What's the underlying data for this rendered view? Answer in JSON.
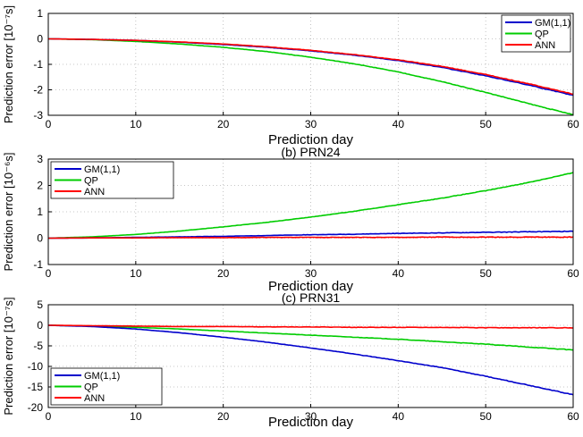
{
  "chart_data": [
    {
      "type": "line",
      "title": "",
      "xlabel": "Prediction day",
      "ylabel": "Prediction error [10⁻⁷s]",
      "xlim": [
        0,
        60
      ],
      "ylim": [
        -3,
        1
      ],
      "xticks": [
        0,
        10,
        20,
        30,
        40,
        50,
        60
      ],
      "yticks": [
        -3,
        -2,
        -1,
        0,
        1
      ],
      "legend_position": "top-right",
      "series": [
        {
          "name": "GM(1,1)",
          "color": "#0000cc",
          "x": [
            0,
            5,
            10,
            15,
            20,
            25,
            30,
            35,
            40,
            45,
            50,
            55,
            60
          ],
          "y": [
            0,
            -0.02,
            -0.06,
            -0.13,
            -0.22,
            -0.33,
            -0.47,
            -0.64,
            -0.85,
            -1.12,
            -1.45,
            -1.82,
            -2.22
          ]
        },
        {
          "name": "QP",
          "color": "#00cc00",
          "x": [
            0,
            5,
            10,
            15,
            20,
            25,
            30,
            35,
            40,
            45,
            50,
            55,
            60
          ],
          "y": [
            0,
            -0.03,
            -0.1,
            -0.2,
            -0.33,
            -0.5,
            -0.72,
            -0.98,
            -1.3,
            -1.68,
            -2.1,
            -2.55,
            -2.98
          ]
        },
        {
          "name": "ANN",
          "color": "#ff0000",
          "x": [
            0,
            5,
            10,
            15,
            20,
            25,
            30,
            35,
            40,
            45,
            50,
            55,
            60
          ],
          "y": [
            0,
            -0.02,
            -0.06,
            -0.12,
            -0.2,
            -0.31,
            -0.45,
            -0.62,
            -0.82,
            -1.08,
            -1.4,
            -1.77,
            -2.17
          ]
        }
      ]
    },
    {
      "type": "line",
      "title": "(b) PRN24",
      "xlabel": "Prediction day",
      "ylabel": "Prediction error [10⁻⁶s]",
      "xlim": [
        0,
        60
      ],
      "ylim": [
        -1,
        3
      ],
      "xticks": [
        0,
        10,
        20,
        30,
        40,
        50,
        60
      ],
      "yticks": [
        -1,
        0,
        1,
        2,
        3
      ],
      "legend_position": "top-left",
      "series": [
        {
          "name": "GM(1,1)",
          "color": "#0000cc",
          "x": [
            0,
            5,
            10,
            15,
            20,
            25,
            30,
            35,
            40,
            45,
            50,
            55,
            60
          ],
          "y": [
            0,
            0.01,
            0.03,
            0.05,
            0.07,
            0.1,
            0.13,
            0.15,
            0.18,
            0.2,
            0.22,
            0.24,
            0.26
          ]
        },
        {
          "name": "QP",
          "color": "#00cc00",
          "x": [
            0,
            5,
            10,
            15,
            20,
            25,
            30,
            35,
            40,
            45,
            50,
            55,
            60
          ],
          "y": [
            0,
            0.05,
            0.14,
            0.27,
            0.43,
            0.6,
            0.8,
            1.02,
            1.27,
            1.52,
            1.8,
            2.12,
            2.48
          ]
        },
        {
          "name": "ANN",
          "color": "#ff0000",
          "x": [
            0,
            5,
            10,
            15,
            20,
            25,
            30,
            35,
            40,
            45,
            50,
            55,
            60
          ],
          "y": [
            0,
            0.01,
            0.01,
            0.02,
            0.02,
            0.03,
            0.03,
            0.03,
            0.03,
            0.04,
            0.04,
            0.04,
            0.04
          ]
        }
      ]
    },
    {
      "type": "line",
      "title": "(c) PRN31",
      "xlabel": "Prediction day",
      "ylabel": "Prediction error [10⁻⁷s]",
      "xlim": [
        0,
        60
      ],
      "ylim": [
        -20,
        5
      ],
      "xticks": [
        0,
        10,
        20,
        30,
        40,
        50,
        60
      ],
      "yticks": [
        -20,
        -15,
        -10,
        -5,
        0,
        5
      ],
      "legend_position": "bottom-left",
      "series": [
        {
          "name": "GM(1,1)",
          "color": "#0000cc",
          "x": [
            0,
            5,
            10,
            15,
            20,
            25,
            30,
            35,
            40,
            45,
            50,
            55,
            60
          ],
          "y": [
            0,
            -0.3,
            -0.9,
            -1.8,
            -2.9,
            -4.1,
            -5.5,
            -7.0,
            -8.6,
            -10.3,
            -12.4,
            -14.6,
            -16.9
          ]
        },
        {
          "name": "QP",
          "color": "#00cc00",
          "x": [
            0,
            5,
            10,
            15,
            20,
            25,
            30,
            35,
            40,
            45,
            50,
            55,
            60
          ],
          "y": [
            0,
            -0.2,
            -0.5,
            -0.9,
            -1.4,
            -1.9,
            -2.4,
            -2.9,
            -3.4,
            -4.0,
            -4.6,
            -5.3,
            -6.0
          ]
        },
        {
          "name": "ANN",
          "color": "#ff0000",
          "x": [
            0,
            5,
            10,
            15,
            20,
            25,
            30,
            35,
            40,
            45,
            50,
            55,
            60
          ],
          "y": [
            0,
            -0.1,
            -0.2,
            -0.3,
            -0.3,
            -0.4,
            -0.4,
            -0.5,
            -0.5,
            -0.5,
            -0.6,
            -0.6,
            -0.6
          ]
        }
      ]
    }
  ]
}
